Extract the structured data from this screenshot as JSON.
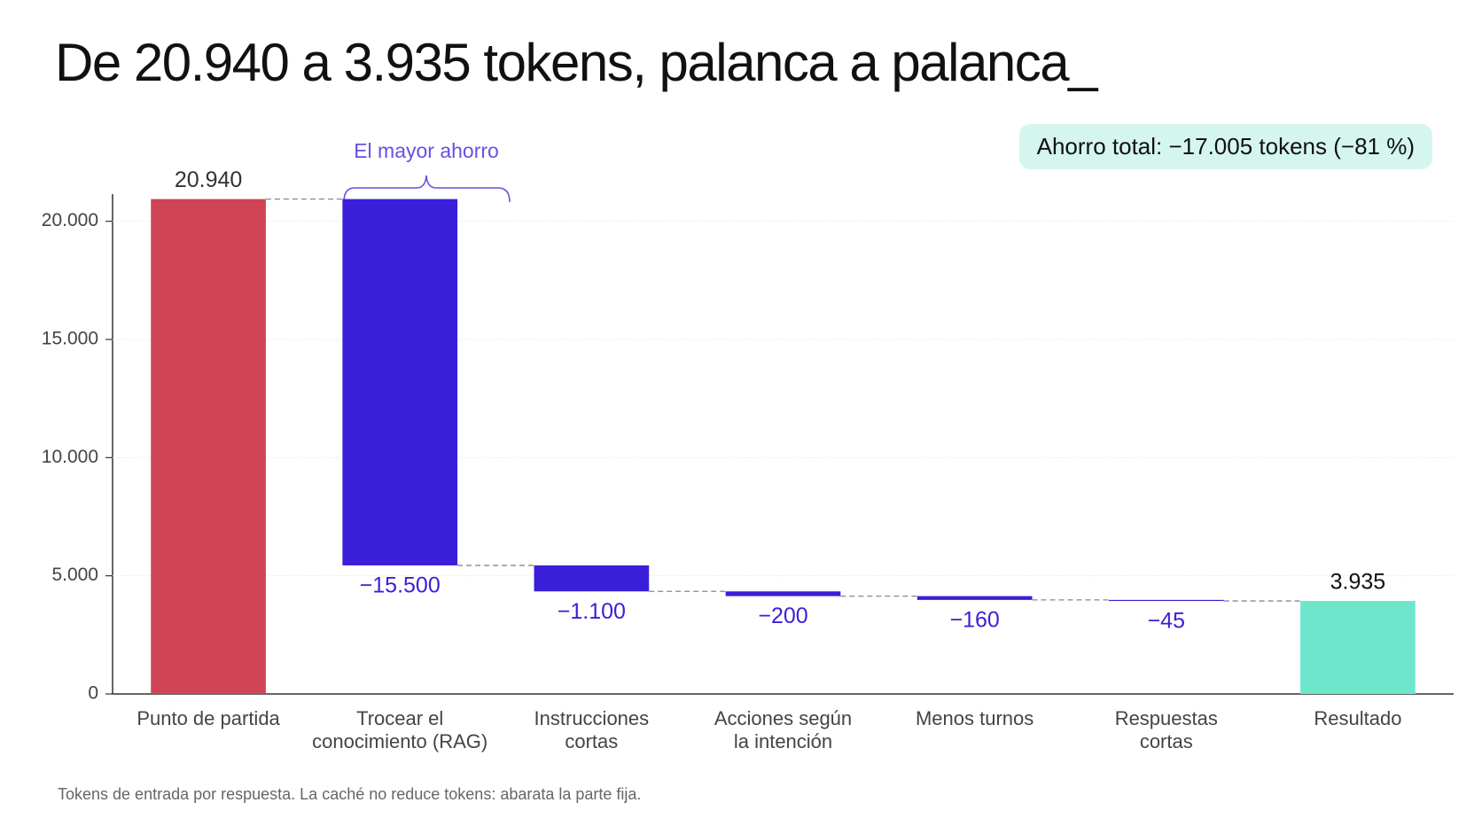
{
  "chart_data": {
    "type": "waterfall",
    "title": "De 20.940 a 3.935 tokens, palanca a palanca_",
    "annotation": "El mayor ahorro",
    "badge": "Ahorro total: −17.005 tokens (−81 %)",
    "footnote": "Tokens de entrada por respuesta. La caché no reduce tokens: abarata la parte fija.",
    "categories": [
      "Punto de partida",
      "Trocear el\nconocimiento (RAG)",
      "Instrucciones\ncortas",
      "Acciones según\nla intención",
      "Menos turnos",
      "Respuestas\ncortas",
      "Resultado"
    ],
    "values": [
      20940,
      -15500,
      -1100,
      -200,
      -160,
      -45,
      3935
    ],
    "value_labels": [
      "20.940",
      "−15.500",
      "−1.100",
      "−200",
      "−160",
      "−45",
      "3.935"
    ],
    "measures": [
      "absolute",
      "relative",
      "relative",
      "relative",
      "relative",
      "relative",
      "total"
    ],
    "colors": [
      "#d04455",
      "#3a1fd9",
      "#3a1fd9",
      "#3a1fd9",
      "#3a1fd9",
      "#3a1fd9",
      "#6ee6cc"
    ],
    "ylim": [
      0,
      21000
    ],
    "yticks": [
      0,
      {
        "value": 5000,
        "label": "5.000"
      },
      {
        "value": 10000,
        "label": "10.000"
      },
      {
        "value": 15000,
        "label": "15.000"
      },
      {
        "value": 20000,
        "label": "20.000"
      }
    ],
    "grid": true
  }
}
